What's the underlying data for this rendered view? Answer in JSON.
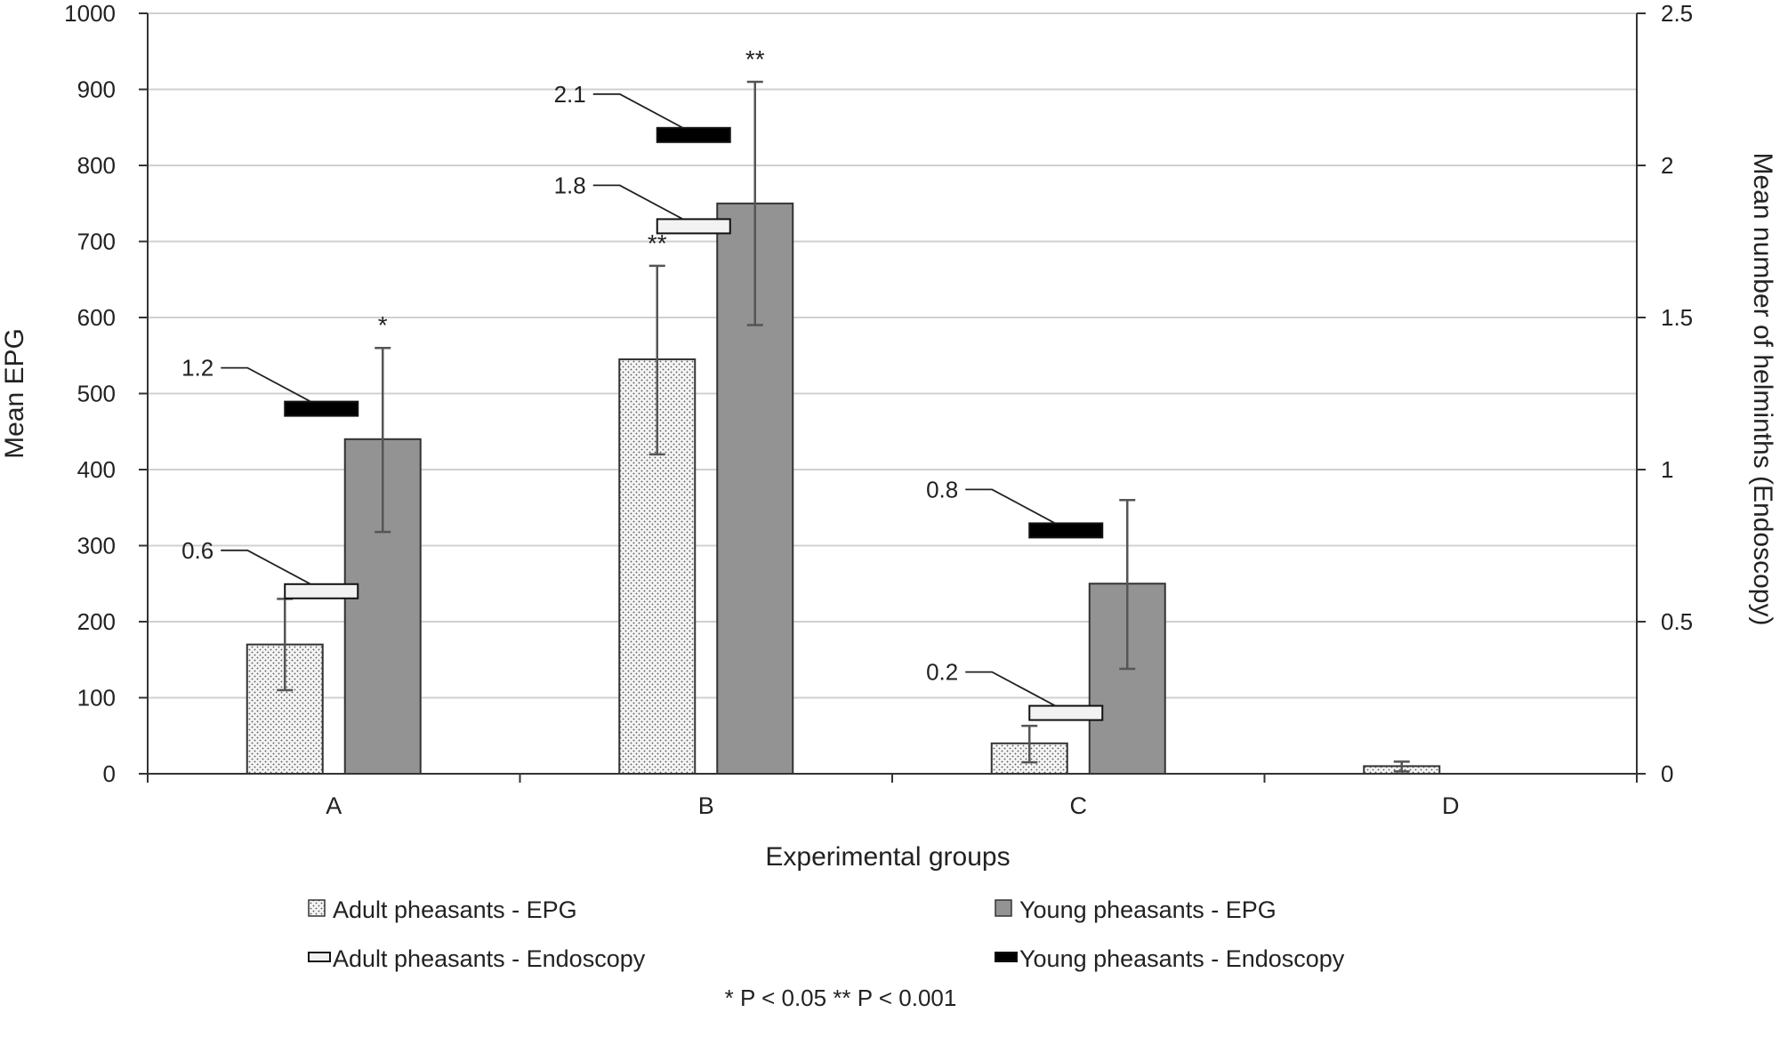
{
  "chart_data": {
    "type": "bar",
    "title": "",
    "xlabel": "Experimental groups",
    "ylabel": "Mean EPG",
    "y2label": "Mean number of helminths (Endoscopy)",
    "ylim": [
      0,
      1000
    ],
    "y2lim": [
      0,
      2.5
    ],
    "yticks": [
      "0",
      "100",
      "200",
      "300",
      "400",
      "500",
      "600",
      "700",
      "800",
      "900",
      "1000"
    ],
    "y2ticks": [
      "0",
      "0.5",
      "1",
      "1.5",
      "2",
      "2.5"
    ],
    "categories": [
      "A",
      "B",
      "C",
      "D"
    ],
    "series": [
      {
        "name": "Adult pheasants - EPG",
        "axis": "left",
        "style": "dotted",
        "color": "#f2f2f2",
        "values": [
          170,
          545,
          40,
          10
        ],
        "err_low": [
          110,
          420,
          15,
          3
        ],
        "err_high": [
          230,
          668,
          63,
          16
        ],
        "sig": [
          "",
          "**",
          "",
          ""
        ]
      },
      {
        "name": "Young pheasants - EPG",
        "axis": "left",
        "style": "solid",
        "color": "#939393",
        "values": [
          440,
          750,
          250,
          null
        ],
        "err_low": [
          318,
          590,
          138,
          null
        ],
        "err_high": [
          560,
          910,
          360,
          null
        ],
        "sig": [
          "*",
          "**",
          "",
          ""
        ]
      }
    ],
    "markers": [
      {
        "name": "Adult pheasants - Endoscopy",
        "axis": "right",
        "color": "#f2f2f2",
        "values": [
          0.6,
          1.8,
          0.2,
          null
        ],
        "labels": [
          "0.6",
          "1.8",
          "0.2",
          ""
        ]
      },
      {
        "name": "Young pheasants - Endoscopy",
        "axis": "right",
        "color": "#000000",
        "values": [
          1.2,
          2.1,
          0.8,
          null
        ],
        "labels": [
          "1.2",
          "2.1",
          "0.8",
          ""
        ]
      }
    ],
    "legend": [
      {
        "label": "Adult pheasants - EPG"
      },
      {
        "label": "Young pheasants - EPG"
      },
      {
        "label": "Adult pheasants - Endoscopy"
      },
      {
        "label": "Young pheasants - Endoscopy"
      }
    ],
    "legend_position": "bottom",
    "footnote": "* P < 0.05   ** P < 0.001",
    "grid": true
  }
}
